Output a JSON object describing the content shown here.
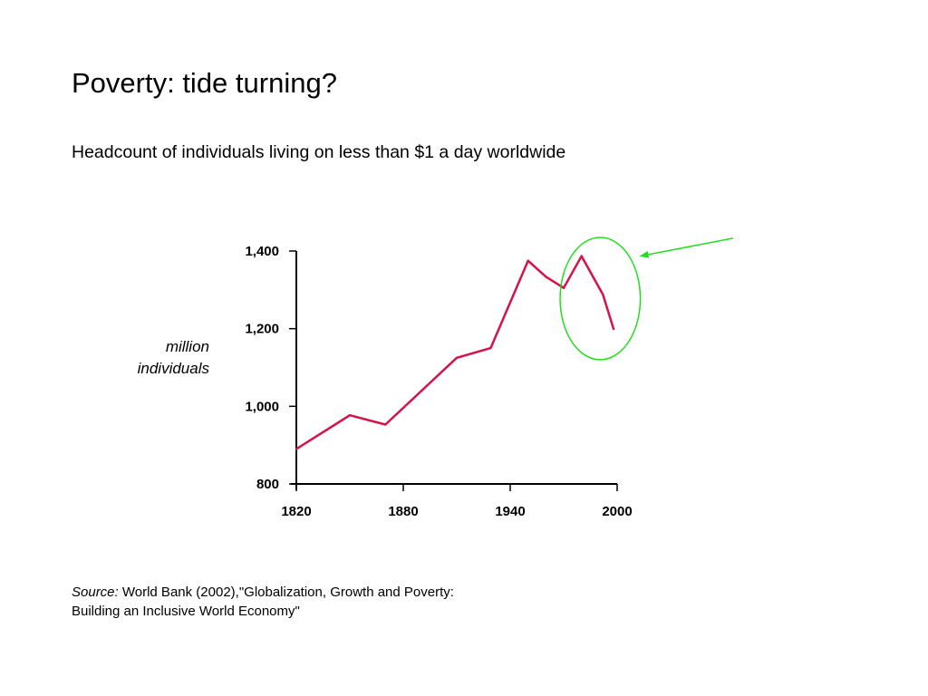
{
  "slide": {
    "title": "Poverty: tide turning?",
    "subtitle": "Headcount of individuals living on less than $1 a day worldwide"
  },
  "y_unit": {
    "line1": "million",
    "line2": "individuals"
  },
  "source": {
    "label": "Source:",
    "line1": " World Bank (2002),\"Globalization, Growth and Poverty:",
    "line2": "Building an Inclusive World Economy\""
  },
  "chart_data": {
    "type": "line",
    "title": "",
    "xlabel": "",
    "ylabel": "",
    "xlim": [
      1820,
      2000
    ],
    "ylim": [
      800,
      1400
    ],
    "x_ticks": [
      1820,
      1880,
      1940,
      2000
    ],
    "x_tick_labels": [
      "1820",
      "1880",
      "1940",
      "2000"
    ],
    "y_ticks": [
      800,
      1000,
      1200,
      1400
    ],
    "y_tick_labels": [
      "800",
      "1,000",
      "1,200",
      "1,400"
    ],
    "grid": false,
    "series": [
      {
        "color": "#d3134a",
        "x": [
          1820,
          1850,
          1870,
          1910,
          1929,
          1950,
          1960,
          1970,
          1980,
          1992,
          1998
        ],
        "y": [
          890,
          977,
          953,
          1125,
          1150,
          1375,
          1334,
          1305,
          1387,
          1288,
          1199
        ]
      }
    ],
    "annotations": [
      {
        "type": "ellipse",
        "color": "#22dd22",
        "x_range": [
          1968,
          2013
        ],
        "y_range": [
          1120,
          1435
        ]
      },
      {
        "type": "arrow",
        "color": "#22dd22",
        "from": [
          2065,
          1433
        ],
        "to": [
          2013,
          1387
        ]
      }
    ]
  },
  "colors": {
    "axis": "#000000",
    "series": "#d3134a",
    "annotation": "#22dd22"
  }
}
